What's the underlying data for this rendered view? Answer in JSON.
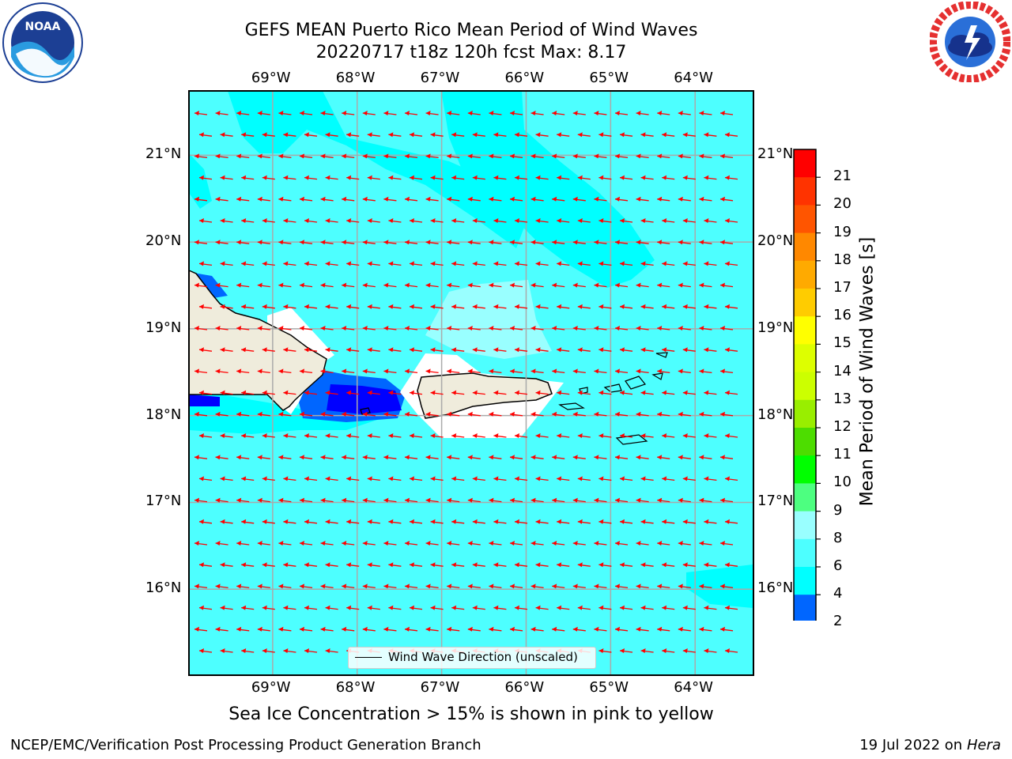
{
  "title_line1": "GEFS MEAN Puerto Rico Mean Period of Wind Waves",
  "title_line2": "20220717 t18z 120h fcst   Max: 8.17",
  "lon_labels": [
    "69°W",
    "68°W",
    "67°W",
    "66°W",
    "65°W",
    "64°W"
  ],
  "lat_labels": [
    "21°N",
    "20°N",
    "19°N",
    "18°N",
    "17°N",
    "16°N"
  ],
  "colorbar": {
    "label": "Mean Period of Wind Waves [s]",
    "ticks": [
      "2",
      "4",
      "6",
      "8",
      "9",
      "10",
      "11",
      "12",
      "13",
      "14",
      "15",
      "16",
      "17",
      "18",
      "19",
      "20",
      "21"
    ],
    "colors": [
      "#0000ff",
      "#0066ff",
      "#00ffff",
      "#4dffff",
      "#99ffff",
      "#4dff80",
      "#00ff00",
      "#4ddd00",
      "#99ee00",
      "#ccff00",
      "#ddff00",
      "#ffff00",
      "#ffcc00",
      "#ffaa00",
      "#ff8800",
      "#ff5500",
      "#ff3300",
      "#ff0000"
    ]
  },
  "map": {
    "lon_range": [
      -70,
      -63.3
    ],
    "lat_range": [
      15.0,
      21.75
    ],
    "ocean_color": "#4dffff",
    "land_color": "#efecdc",
    "arrow_color": "#ff0000",
    "wind_wave_direction_label": "Wind Wave Direction (unscaled)"
  },
  "note": "Sea Ice Concentration > 15% is shown in pink to yellow",
  "footer_left": "NCEP/EMC/Verification Post Processing Product Generation Branch",
  "footer_date": "19 Jul 2022 on",
  "footer_host": "Hera",
  "logos": {
    "noaa_text": "NOAA",
    "nws_icon": "nws-logo-icon"
  }
}
